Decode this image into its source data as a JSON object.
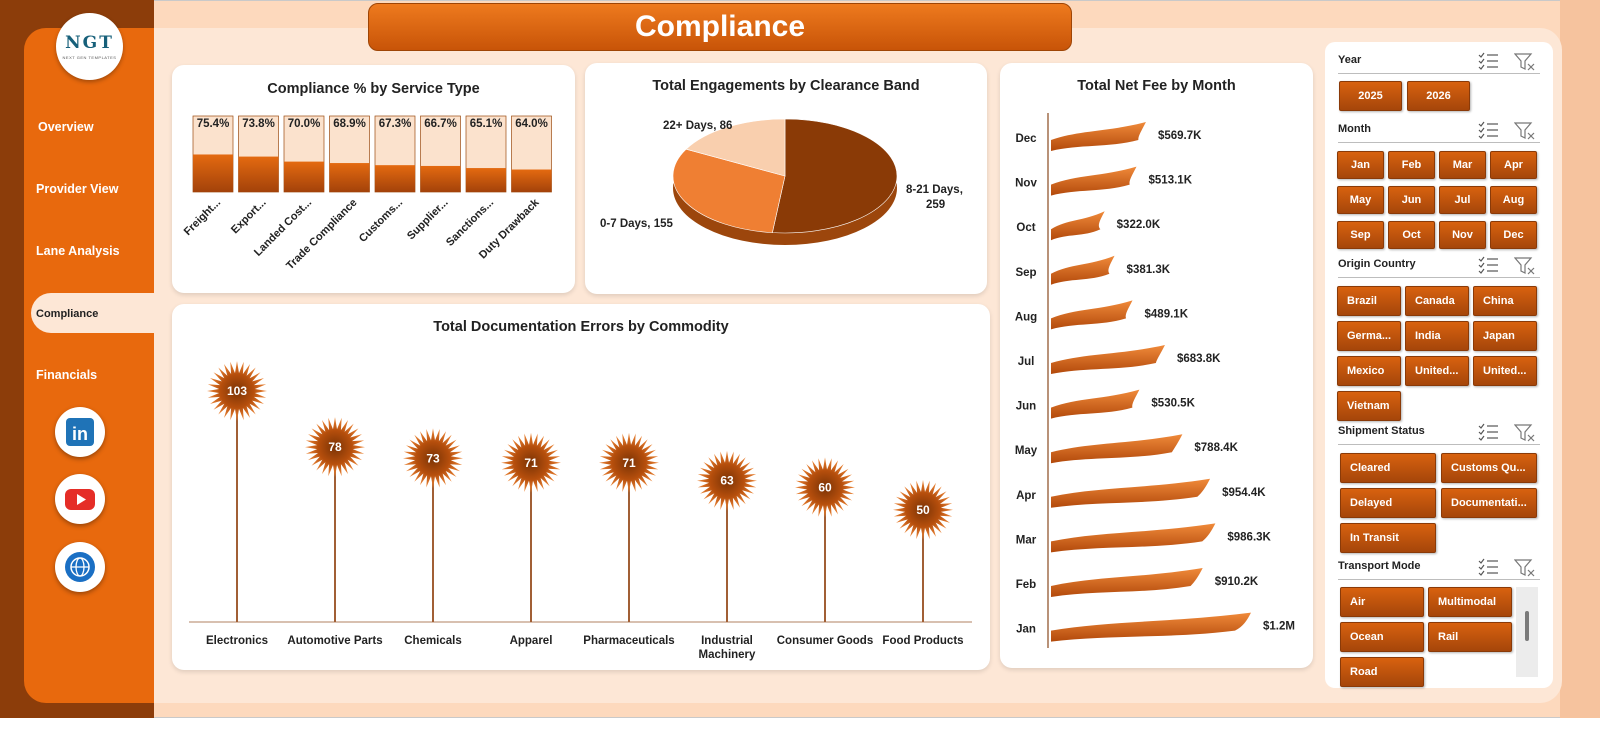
{
  "title": "Compliance",
  "logo": {
    "text": "NGT",
    "subtext": "NEXT GEN TEMPLATES"
  },
  "nav": [
    {
      "label": "Overview",
      "active": false
    },
    {
      "label": "Provider View",
      "active": false
    },
    {
      "label": "Lane Analysis",
      "active": false
    },
    {
      "label": "Compliance",
      "active": true
    },
    {
      "label": "Financials",
      "active": false
    }
  ],
  "social": [
    {
      "name": "linkedin",
      "icon": "linkedin-icon",
      "color": "#1f73b7",
      "glyph": "in"
    },
    {
      "name": "youtube",
      "icon": "youtube-icon",
      "color": "#e52d27",
      "glyph": "▶"
    },
    {
      "name": "website",
      "icon": "globe-icon",
      "color": "#1a6fc4",
      "glyph": ""
    }
  ],
  "colors": {
    "accent": "#e8690d",
    "dark": "#8c3d0a",
    "light": "#fde7d6"
  },
  "charts": {
    "compliance": {
      "title": "Compliance % by Service Type",
      "chart_data": {
        "type": "bar",
        "categories": [
          "Freight...",
          "Export...",
          "Landed Cost...",
          "Trade Compliance",
          "Customs...",
          "Supplier...",
          "Sanctions...",
          "Duty Drawback"
        ],
        "values": [
          75.4,
          73.8,
          70.0,
          68.9,
          67.3,
          66.7,
          65.1,
          64.0
        ],
        "labels": [
          "75.4%",
          "73.8%",
          "70.0%",
          "68.9%",
          "67.3%",
          "66.7%",
          "65.1%",
          "64.0%"
        ],
        "ylim": [
          0,
          100
        ]
      }
    },
    "engagements": {
      "title": "Total Engagements by Clearance Band",
      "chart_data": {
        "type": "pie",
        "slices": [
          {
            "name": "8-21 Days",
            "value": 259,
            "label_line1": "8-21 Days,",
            "label_line2": "259",
            "color": "#8a3a06"
          },
          {
            "name": "0-7 Days",
            "value": 155,
            "label_line1": "0-7 Days, 155",
            "label_line2": "",
            "color": "#ef7f33"
          },
          {
            "name": "22+ Days",
            "value": 86,
            "label_line1": "22+ Days, 86",
            "label_line2": "",
            "color": "#f9cfae"
          }
        ]
      }
    },
    "netfee": {
      "title": "Total Net Fee by Month",
      "chart_data": {
        "type": "bar",
        "categories": [
          "Dec",
          "Nov",
          "Oct",
          "Sep",
          "Aug",
          "Jul",
          "Jun",
          "May",
          "Apr",
          "Mar",
          "Feb",
          "Jan"
        ],
        "values": [
          569.7,
          513.1,
          322.0,
          381.3,
          489.1,
          683.8,
          530.5,
          788.4,
          954.4,
          986.3,
          910.2,
          1200
        ],
        "labels": [
          "$569.7K",
          "$513.1K",
          "$322.0K",
          "$381.3K",
          "$489.1K",
          "$683.8K",
          "$530.5K",
          "$788.4K",
          "$954.4K",
          "$986.3K",
          "$910.2K",
          "$1.2M"
        ]
      }
    },
    "docerrors": {
      "title": "Total Documentation Errors by Commodity",
      "chart_data": {
        "type": "bar",
        "categories": [
          "Electronics",
          "Automotive Parts",
          "Chemicals",
          "Apparel",
          "Pharmaceuticals",
          "Industrial Machinery",
          "Consumer Goods",
          "Food Products"
        ],
        "category_lines": [
          [
            "Electronics"
          ],
          [
            "Automotive Parts"
          ],
          [
            "Chemicals"
          ],
          [
            "Apparel"
          ],
          [
            "Pharmaceuticals"
          ],
          [
            "Industrial",
            "Machinery"
          ],
          [
            "Consumer Goods"
          ],
          [
            "Food Products"
          ]
        ],
        "values": [
          103,
          78,
          73,
          71,
          71,
          63,
          60,
          50
        ]
      }
    }
  },
  "slicers": [
    {
      "title": "Year",
      "cols": 2,
      "items": [
        "2025",
        "2026"
      ]
    },
    {
      "title": "Month",
      "cols": 4,
      "items": [
        "Jan",
        "Feb",
        "Mar",
        "Apr",
        "May",
        "Jun",
        "Jul",
        "Aug",
        "Sep",
        "Oct",
        "Nov",
        "Dec"
      ]
    },
    {
      "title": "Origin Country",
      "cols": 3,
      "items": [
        "Brazil",
        "Canada",
        "China",
        "Germa...",
        "India",
        "Japan",
        "Mexico",
        "United...",
        "United...",
        "Vietnam"
      ]
    },
    {
      "title": "Shipment Status",
      "cols": 2,
      "items": [
        "Cleared",
        "Customs Qu...",
        "Delayed",
        "Documentati...",
        "In Transit"
      ]
    },
    {
      "title": "Transport Mode",
      "cols": 2,
      "items": [
        "Air",
        "Multimodal",
        "Ocean",
        "Rail",
        "Road"
      ]
    }
  ]
}
